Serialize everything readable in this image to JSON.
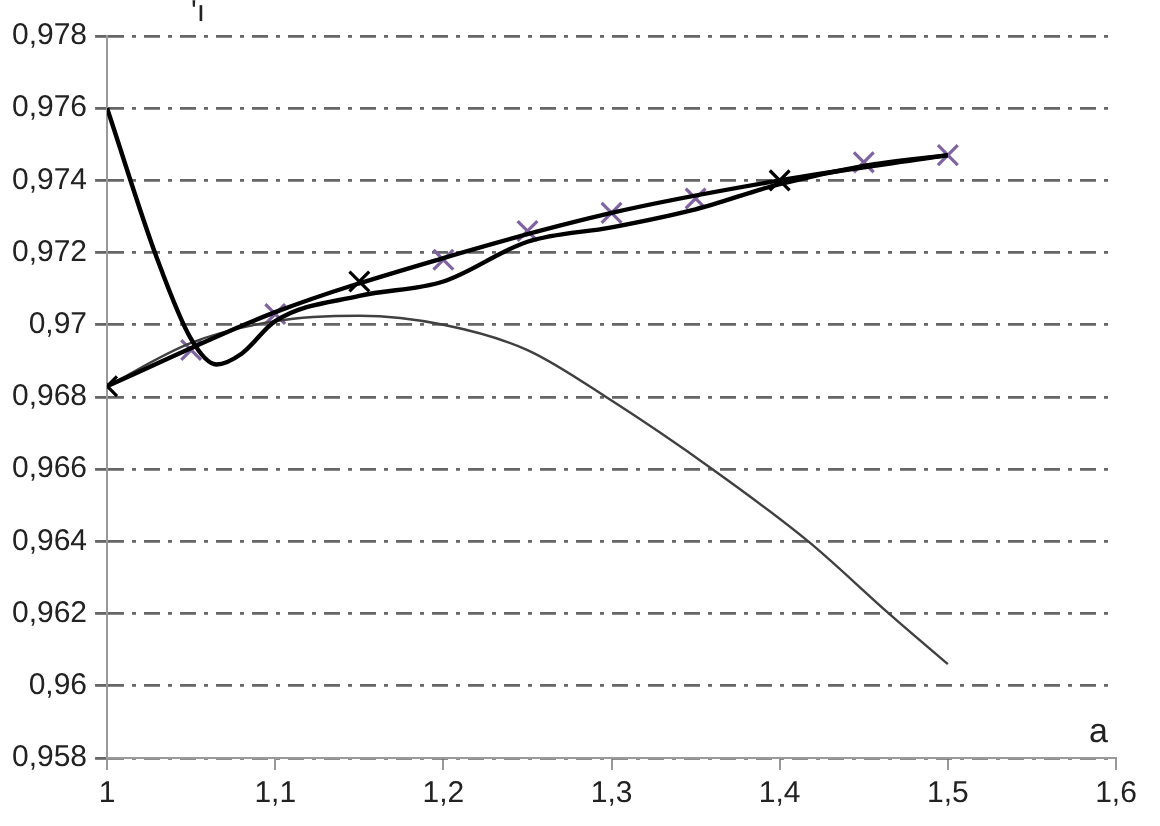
{
  "chart_data": {
    "type": "line",
    "ylabel": "'ı",
    "xlabel": "a",
    "xlim": [
      1,
      1.6
    ],
    "xticks": [
      1,
      {
        "value": 1.1,
        "label": "1,1"
      },
      {
        "value": 1.2,
        "label": "1,2"
      },
      {
        "value": 1.3,
        "label": "1,3"
      },
      {
        "value": 1.4,
        "label": "1,4"
      },
      {
        "value": 1.5,
        "label": "1,5"
      },
      {
        "value": 1.6,
        "label": "1,6"
      }
    ],
    "ylim": [
      0.958,
      0.978
    ],
    "yticks": [
      {
        "value": 0.958,
        "label": "0,958"
      },
      {
        "value": 0.96,
        "label": "0,96"
      },
      {
        "value": 0.962,
        "label": "0,962"
      },
      {
        "value": 0.964,
        "label": "0,964"
      },
      {
        "value": 0.966,
        "label": "0,966"
      },
      {
        "value": 0.968,
        "label": "0,968"
      },
      {
        "value": 0.97,
        "label": "0,97"
      },
      {
        "value": 0.972,
        "label": "0,972"
      },
      {
        "value": 0.974,
        "label": "0,974"
      },
      {
        "value": 0.976,
        "label": "0,976"
      },
      {
        "value": 0.978,
        "label": "0,978"
      }
    ],
    "grid": "y",
    "legend": false,
    "line_style": "solid",
    "series": [
      {
        "type": "line",
        "color": "#000000",
        "x": [
          1,
          1.03,
          1.05,
          1.065,
          1.08,
          1.1,
          1.15,
          1.2,
          1.25,
          1.3,
          1.35,
          1.4,
          1.45,
          1.5
        ],
        "values": [
          0.976,
          0.9718,
          0.9696,
          0.9689,
          0.9692,
          0.9701,
          0.9708,
          0.9712,
          0.9723,
          0.9727,
          0.9732,
          0.9739,
          0.9744,
          0.9747
        ]
      },
      {
        "type": "line",
        "color": "#000000",
        "x": [
          1,
          1.1,
          1.2,
          1.3,
          1.4,
          1.5
        ],
        "values": [
          0.9683,
          0.97035,
          0.97185,
          0.9731,
          0.974,
          0.9747
        ]
      },
      {
        "type": "line",
        "color": "#404040",
        "x": [
          1,
          1.05,
          1.1,
          1.15,
          1.2,
          1.25,
          1.3,
          1.36,
          1.417,
          1.465,
          1.5
        ],
        "values": [
          0.9683,
          0.9695,
          0.9701,
          0.97025,
          0.97,
          0.9693,
          0.9679,
          0.966,
          0.964,
          0.962,
          0.9606
        ]
      },
      {
        "type": "scatter",
        "marker": "cross",
        "x": [
          1,
          1.05,
          1.1,
          1.15,
          1.2,
          1.25,
          1.3,
          1.35,
          1.4,
          1.45,
          1.5
        ],
        "values": [
          0.9683,
          0.9693,
          0.9703,
          0.9712,
          0.9718,
          0.9726,
          0.9731,
          0.9735,
          0.974,
          0.9745,
          0.9747
        ],
        "colors": [
          "#000000",
          "#8064a2",
          "#8064a2",
          "#000000",
          "#8064a2",
          "#8064a2",
          "#8064a2",
          "#8064a2",
          "#000000",
          "#8064a2",
          "#8064a2"
        ]
      }
    ]
  }
}
